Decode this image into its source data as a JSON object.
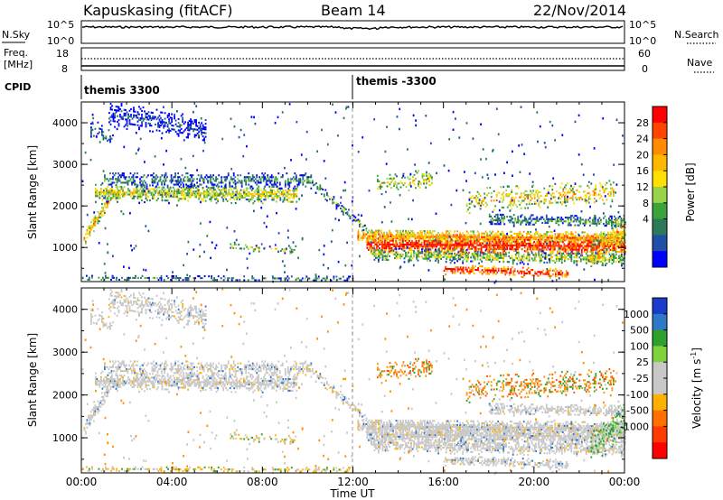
{
  "header": {
    "station": "Kapuskasing (fitACF)",
    "beam": "Beam 14",
    "date": "22/Nov/2014"
  },
  "aux_panels": {
    "nsky": {
      "left_label": "N.Sky",
      "right_label": "N.Search",
      "left_ticks": [
        "10^5",
        "10^0"
      ],
      "right_ticks": [
        "10^5",
        "10^0"
      ]
    },
    "freq": {
      "left_label_1": "Freq.",
      "left_label_2": "[MHz]",
      "right_label": "Nave",
      "left_ticks": [
        "18",
        "8"
      ],
      "right_ticks": [
        "60",
        "0"
      ]
    },
    "cpid": {
      "label": "CPID",
      "segments": [
        "themis 3300",
        "themis -3300"
      ]
    }
  },
  "chart_data": [
    {
      "type": "heatmap",
      "name": "power",
      "ylabel": "Slant Range [km]",
      "ylim": [
        180,
        4500
      ],
      "yticks": [
        1000,
        2000,
        3000,
        4000
      ],
      "xlim": [
        0,
        24
      ],
      "xticks": [
        "00:00",
        "04:00",
        "08:00",
        "12:00",
        "16:00",
        "20:00",
        "00:00"
      ],
      "colorbar": {
        "label": "Power [dB]",
        "tick_labels": [
          "28",
          "24",
          "20",
          "16",
          "12",
          "8",
          "4"
        ],
        "colors": [
          "#ff0000",
          "#ff4400",
          "#ff8c00",
          "#ffb700",
          "#ffe000",
          "#99d34a",
          "#3aa33a",
          "#2c7a5a",
          "#1f4fa8",
          "#0000ff"
        ]
      }
    },
    {
      "type": "heatmap",
      "name": "velocity",
      "ylabel": "Slant Range [km]",
      "ylim": [
        180,
        4500
      ],
      "yticks": [
        1000,
        2000,
        3000,
        4000
      ],
      "xlim": [
        0,
        24
      ],
      "xticks": [
        "00:00",
        "04:00",
        "08:00",
        "12:00",
        "16:00",
        "20:00",
        "00:00"
      ],
      "xlabel": "Time UT",
      "colorbar": {
        "label": "Velocity [m s",
        "label_sup": "-1",
        "label_end": "]",
        "tick_labels": [
          "1000",
          "500",
          "100",
          "25",
          "-25",
          "-100",
          "-500",
          "-1000"
        ],
        "colors": [
          "#1a3ccc",
          "#2e78c8",
          "#2ea02e",
          "#7ed23c",
          "#c8c8c8",
          "#c8c8c8",
          "#ffb000",
          "#ff7000",
          "#ff3a00",
          "#ff0000"
        ]
      }
    }
  ]
}
